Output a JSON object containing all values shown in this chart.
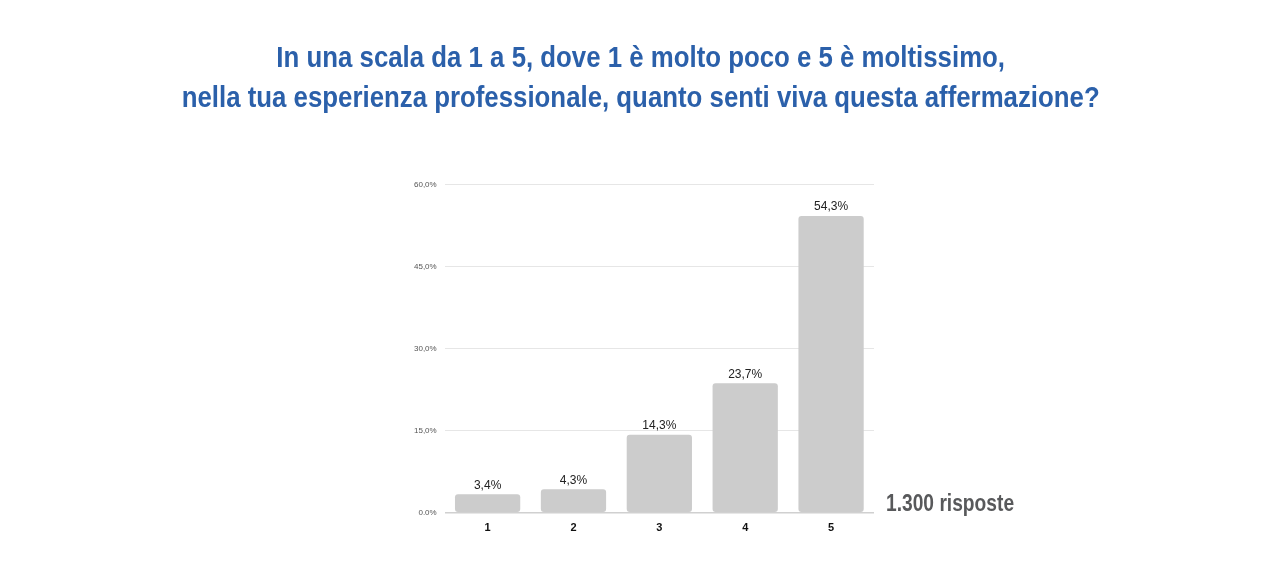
{
  "chart_data": {
    "type": "bar",
    "title": "In una scala da 1 a 5, dove 1 è molto poco e 5 è moltissimo,\nnella tua esperienza professionale, quanto senti viva questa affermazione?",
    "categories": [
      "1",
      "2",
      "3",
      "4",
      "5"
    ],
    "values": [
      3.4,
      4.3,
      14.3,
      23.7,
      54.3
    ],
    "color": "#cccccc",
    "value_labels": [
      "3,4%",
      "4,3%",
      "14,3%",
      "23,7%",
      "54,3%"
    ],
    "ylim": [
      0,
      60
    ],
    "yticks": [
      {
        "value": 0,
        "label": "0.0%"
      },
      {
        "value": 15,
        "label": "15,0%"
      },
      {
        "value": 30,
        "label": "30,0%"
      },
      {
        "value": 45,
        "label": "45,0%"
      },
      {
        "value": 60,
        "label": "60,0%"
      }
    ],
    "grid": "y",
    "legend": false,
    "annotations": [
      "1.300 risposte"
    ]
  }
}
